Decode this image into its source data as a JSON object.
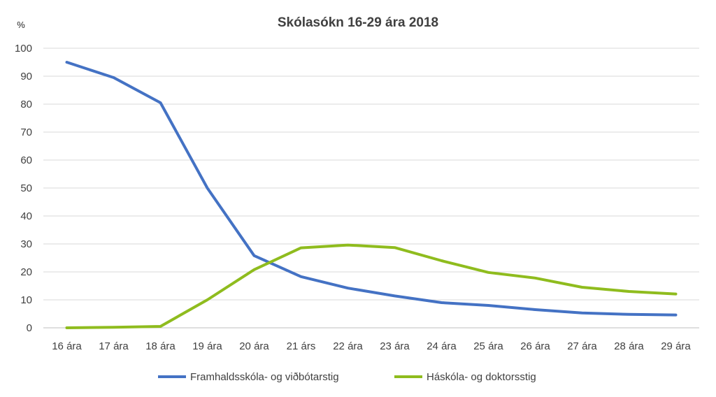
{
  "chart_data": {
    "type": "line",
    "title": "Skólasókn 16-29 ára 2018",
    "ylabel": "%",
    "xlabel": "",
    "ylim": [
      0,
      100
    ],
    "yticks": [
      0,
      10,
      20,
      30,
      40,
      50,
      60,
      70,
      80,
      90,
      100
    ],
    "grid": true,
    "legend": "bottom",
    "categories": [
      "16 ára",
      "17 ára",
      "18 ára",
      "19 ára",
      "20 ára",
      "21 árs",
      "22 ára",
      "23 ára",
      "24 ára",
      "25 ára",
      "26 ára",
      "27 ára",
      "28 ára",
      "29 ára"
    ],
    "series": [
      {
        "name": "Framhaldsskóla- og viðbótarstig",
        "color": "#4472c4",
        "values": [
          95,
          89.5,
          80.5,
          50,
          25.8,
          18.3,
          14.2,
          11.4,
          9,
          8,
          6.5,
          5.3,
          4.8,
          4.6
        ]
      },
      {
        "name": "Háskóla- og doktorsstig",
        "color": "#8fbc1e",
        "values": [
          0,
          0.2,
          0.5,
          10,
          20.8,
          28.6,
          29.6,
          28.7,
          24,
          19.8,
          17.8,
          14.5,
          13,
          12.1
        ]
      }
    ]
  }
}
